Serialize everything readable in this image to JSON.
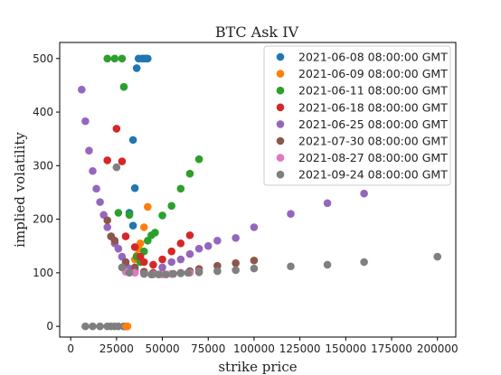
{
  "chart_data": {
    "type": "scatter",
    "title": "BTC Ask IV",
    "xlabel": "strike price",
    "ylabel": "implied volatility",
    "xlim": [
      -6000,
      210000
    ],
    "ylim": [
      -20,
      530
    ],
    "xticks": [
      0,
      25000,
      50000,
      75000,
      100000,
      125000,
      150000,
      175000,
      200000
    ],
    "yticks": [
      0,
      100,
      200,
      300,
      400,
      500
    ],
    "grid": false,
    "legend_position": "top-right",
    "series": [
      {
        "name": "2021-06-08 08:00:00 GMT",
        "color": "#1f77b4",
        "points": [
          [
            34000,
            348
          ],
          [
            36000,
            482
          ],
          [
            37000,
            500
          ],
          [
            39000,
            500
          ],
          [
            40000,
            500
          ],
          [
            41000,
            500
          ],
          [
            42000,
            500
          ],
          [
            35000,
            258
          ],
          [
            32000,
            212
          ],
          [
            34000,
            188
          ],
          [
            29000,
            0
          ],
          [
            30000,
            0
          ]
        ]
      },
      {
        "name": "2021-06-09 08:00:00 GMT",
        "color": "#ff7f0e",
        "points": [
          [
            42000,
            223
          ],
          [
            40000,
            185
          ],
          [
            38000,
            155
          ],
          [
            37000,
            145
          ],
          [
            36000,
            132
          ],
          [
            35000,
            125
          ],
          [
            30000,
            0
          ],
          [
            31000,
            0
          ]
        ]
      },
      {
        "name": "2021-06-11 08:00:00 GMT",
        "color": "#2ca02c",
        "points": [
          [
            20000,
            500
          ],
          [
            24000,
            500
          ],
          [
            28000,
            500
          ],
          [
            29000,
            447
          ],
          [
            26000,
            212
          ],
          [
            32000,
            208
          ],
          [
            36000,
            130
          ],
          [
            38000,
            120
          ],
          [
            40000,
            140
          ],
          [
            42000,
            160
          ],
          [
            44000,
            170
          ],
          [
            46000,
            175
          ],
          [
            50000,
            207
          ],
          [
            55000,
            225
          ],
          [
            60000,
            257
          ],
          [
            65000,
            285
          ],
          [
            70000,
            312
          ]
        ]
      },
      {
        "name": "2021-06-18 08:00:00 GMT",
        "color": "#d62728",
        "points": [
          [
            25000,
            369
          ],
          [
            20000,
            310
          ],
          [
            28000,
            308
          ],
          [
            30000,
            168
          ],
          [
            35000,
            148
          ],
          [
            38000,
            130
          ],
          [
            40000,
            120
          ],
          [
            45000,
            115
          ],
          [
            50000,
            125
          ],
          [
            55000,
            140
          ],
          [
            60000,
            155
          ],
          [
            65000,
            170
          ]
        ]
      },
      {
        "name": "2021-06-25 08:00:00 GMT",
        "color": "#9467bd",
        "points": [
          [
            6000,
            442
          ],
          [
            8000,
            383
          ],
          [
            10000,
            328
          ],
          [
            12000,
            290
          ],
          [
            14000,
            257
          ],
          [
            16000,
            232
          ],
          [
            18000,
            208
          ],
          [
            20000,
            185
          ],
          [
            22000,
            168
          ],
          [
            24000,
            155
          ],
          [
            26000,
            145
          ],
          [
            28000,
            130
          ],
          [
            30000,
            115
          ],
          [
            32000,
            108
          ],
          [
            35000,
            105
          ],
          [
            40000,
            100
          ],
          [
            45000,
            100
          ],
          [
            50000,
            110
          ],
          [
            55000,
            120
          ],
          [
            60000,
            125
          ],
          [
            65000,
            135
          ],
          [
            70000,
            145
          ],
          [
            75000,
            150
          ],
          [
            80000,
            160
          ],
          [
            90000,
            165
          ],
          [
            100000,
            185
          ],
          [
            120000,
            210
          ],
          [
            140000,
            230
          ],
          [
            160000,
            248
          ]
        ]
      },
      {
        "name": "2021-07-30 08:00:00 GMT",
        "color": "#8c564b",
        "points": [
          [
            20000,
            198
          ],
          [
            22000,
            168
          ],
          [
            24000,
            160
          ],
          [
            30000,
            120
          ],
          [
            35000,
            110
          ],
          [
            40000,
            102
          ],
          [
            45000,
            100
          ],
          [
            50000,
            98
          ],
          [
            55000,
            98
          ],
          [
            60000,
            100
          ],
          [
            65000,
            103
          ],
          [
            70000,
            107
          ],
          [
            80000,
            113
          ],
          [
            90000,
            118
          ],
          [
            100000,
            123
          ]
        ]
      },
      {
        "name": "2021-08-27 08:00:00 GMT",
        "color": "#e377c2",
        "points": [
          [
            30000,
            102
          ],
          [
            35000,
            100
          ],
          [
            40000,
            98
          ],
          [
            45000,
            97
          ],
          [
            50000,
            97
          ],
          [
            55000,
            98
          ],
          [
            60000,
            99
          ],
          [
            65000,
            100
          ],
          [
            70000,
            102
          ]
        ]
      },
      {
        "name": "2021-09-24 08:00:00 GMT",
        "color": "#7f7f7f",
        "points": [
          [
            25000,
            297
          ],
          [
            28000,
            110
          ],
          [
            32000,
            100
          ],
          [
            40000,
            98
          ],
          [
            44000,
            97
          ],
          [
            48000,
            97
          ],
          [
            52000,
            97
          ],
          [
            56000,
            98
          ],
          [
            60000,
            99
          ],
          [
            64000,
            100
          ],
          [
            70000,
            101
          ],
          [
            80000,
            103
          ],
          [
            90000,
            105
          ],
          [
            100000,
            108
          ],
          [
            120000,
            112
          ],
          [
            140000,
            115
          ],
          [
            160000,
            120
          ],
          [
            200000,
            130
          ],
          [
            8000,
            0
          ],
          [
            12000,
            0
          ],
          [
            16000,
            0
          ],
          [
            20000,
            0
          ],
          [
            22000,
            0
          ],
          [
            24000,
            0
          ],
          [
            26000,
            0
          ]
        ]
      }
    ]
  }
}
